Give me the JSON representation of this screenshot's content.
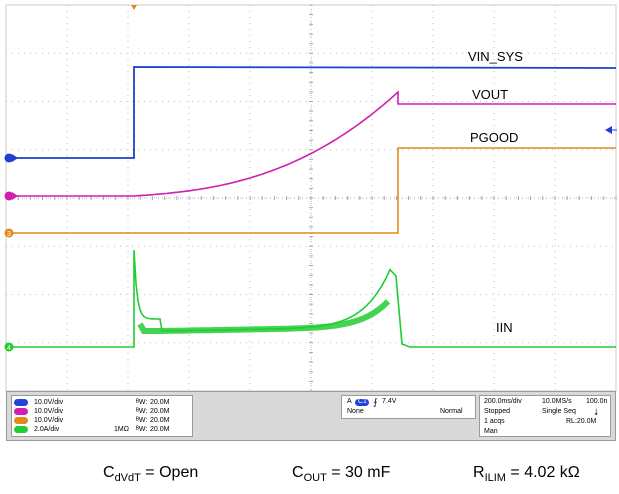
{
  "signals": [
    {
      "name": "VIN_SYS",
      "color": "#1e3fd0"
    },
    {
      "name": "VOUT",
      "color": "#d020b0"
    },
    {
      "name": "PGOOD",
      "color": "#e08a1e"
    },
    {
      "name": "IIN",
      "color": "#22cc33"
    }
  ],
  "channel_markers": {
    "c3": "3",
    "c4": "4"
  },
  "status": {
    "channels": [
      {
        "id": "C1",
        "scale": "10.0V/div",
        "impedance": "",
        "bw": "20.0M",
        "color": "#2243d8"
      },
      {
        "id": "C2",
        "scale": "10.0V/div",
        "impedance": "",
        "bw": "20.0M",
        "color": "#d020b0"
      },
      {
        "id": "C3",
        "scale": "10.0V/div",
        "impedance": "",
        "bw": "20.0M",
        "color": "#e08a1e"
      },
      {
        "id": "C4",
        "scale": "2.0A/div",
        "impedance": "1MΩ",
        "bw": "20.0M",
        "color": "#22cc33"
      }
    ],
    "trigger": {
      "mode": "A",
      "source": "C1",
      "level": "7.4V",
      "coupling": "None",
      "type": "Normal"
    },
    "timebase": {
      "time_div": "200.0ms/div",
      "sample_rate": "10.0MS/s",
      "resolution": "100.0n",
      "state": "Stopped",
      "sequence": "Single Seq",
      "acqs": "1 acqs",
      "record_length": "RL:20.0M",
      "mode": "Man"
    }
  },
  "caption": {
    "cdvdt_main": "C",
    "cdvdt_sub": "dVdT",
    "cdvdt_val": " = Open",
    "cout_main": "C",
    "cout_sub": "OUT",
    "cout_val": " = 30 mF",
    "rilim_main": "R",
    "rilim_sub": "ILIM",
    "rilim_val": " = 4.02 kΩ"
  }
}
